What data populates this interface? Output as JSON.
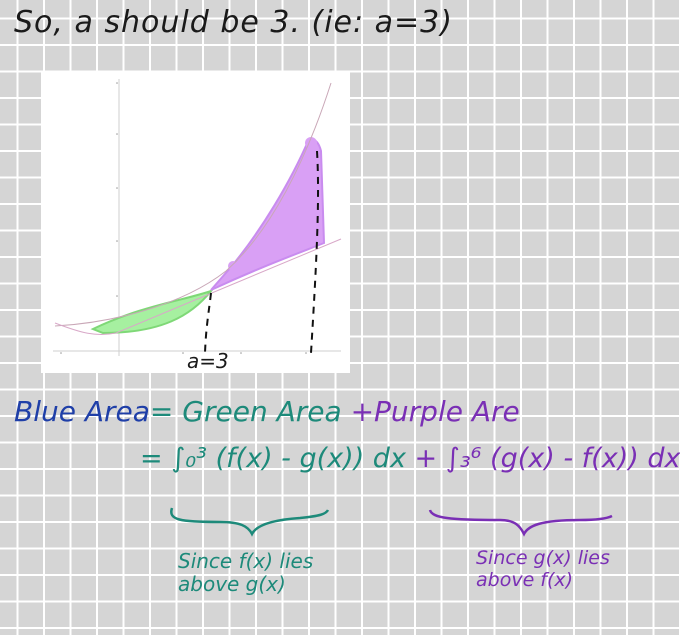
{
  "heading": "So, a should be 3. (ie: a=3)",
  "graph": {
    "a_label": "a=3"
  },
  "equation": {
    "lhs": "Blue Area",
    "eq": "=",
    "green": "Green Area",
    "plus": "+",
    "purple": "Purple Are",
    "line2_eq": "=",
    "integral1": "∫₀³ (f(x) - g(x)) dx",
    "plus2": "+",
    "integral2": "∫₃⁶ (g(x) - f(x)) dx"
  },
  "notes": {
    "left": "Since f(x) lies\nabove g(x)",
    "right": "Since g(x) lies\nabove f(x)"
  },
  "colors": {
    "green_fill": "#a6f0a0",
    "purple_fill": "#d9a0f5",
    "blue_ink": "#1f3fa8",
    "teal_ink": "#1d8a7a",
    "purple_ink": "#7a2fb5",
    "curve": "#c9a7b7"
  }
}
